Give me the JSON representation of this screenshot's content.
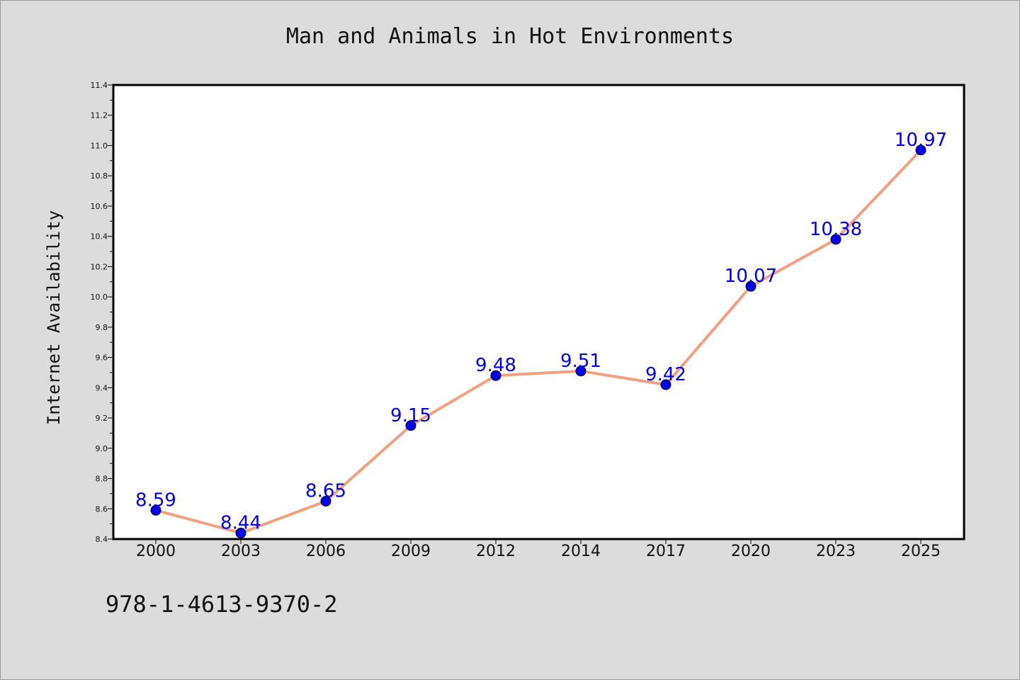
{
  "chart_data": {
    "type": "line",
    "title": "Man and Animals in Hot Environments",
    "xlabel": "",
    "ylabel": "Internet Availability",
    "categories": [
      "2000",
      "2003",
      "2006",
      "2009",
      "2012",
      "2014",
      "2017",
      "2020",
      "2023",
      "2025"
    ],
    "series": [
      {
        "values": [
          8.59,
          8.44,
          8.65,
          9.15,
          9.48,
          9.51,
          9.42,
          10.07,
          10.38,
          10.97
        ],
        "line_color": "#f4a07e",
        "marker_color": "#0000ee",
        "label_color": "#0000ee"
      }
    ],
    "data_labels": [
      "8.59",
      "8.44",
      "8.65",
      "9.15",
      "9.48",
      "9.51",
      "9.42",
      "10.07",
      "10.38",
      "10.97"
    ],
    "ylim": [
      8.4,
      11.4
    ],
    "yticks": [
      "8.4",
      "8.6",
      "8.8",
      "9.0",
      "9.2",
      "9.4",
      "9.6",
      "9.8",
      "10.0",
      "10.2",
      "10.4",
      "10.6",
      "10.8",
      "11.0",
      "11.2",
      "11.4"
    ],
    "grid": false,
    "legend": "none"
  },
  "footer": {
    "isbn": "978-1-4613-9370-2"
  },
  "colors": {
    "background": "#dcdcdc",
    "plot_area": "#ffffff"
  }
}
